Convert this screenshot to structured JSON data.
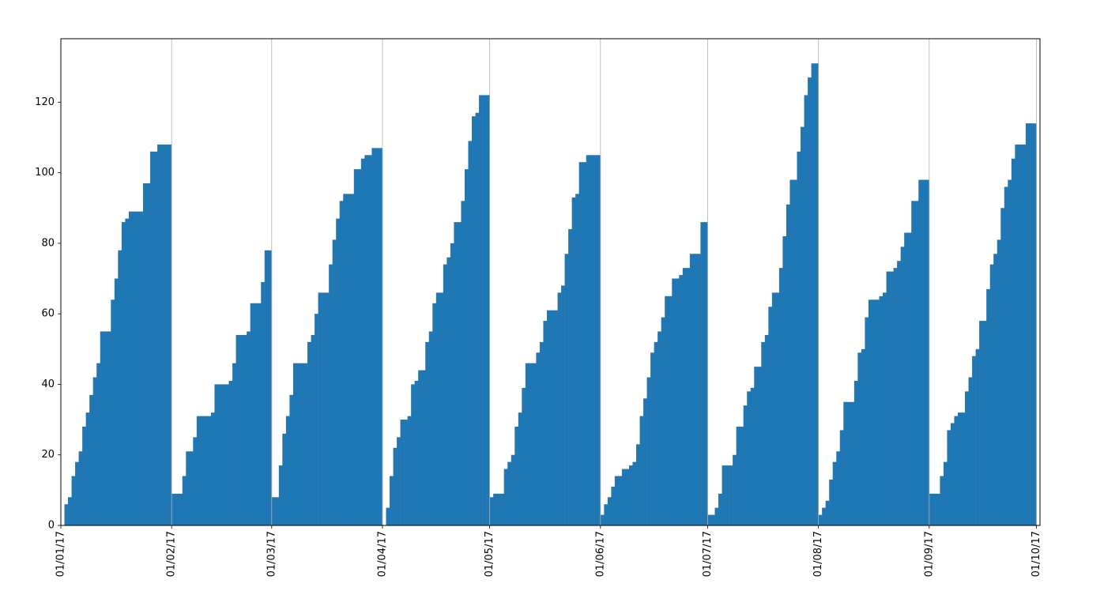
{
  "chart_data": {
    "type": "bar",
    "color": "#1f77b4",
    "grid": true,
    "x": [
      "2017-01-01",
      "2017-01-02",
      "2017-01-03",
      "2017-01-04",
      "2017-01-05",
      "2017-01-06",
      "2017-01-07",
      "2017-01-08",
      "2017-01-09",
      "2017-01-10",
      "2017-01-11",
      "2017-01-12",
      "2017-01-13",
      "2017-01-14",
      "2017-01-15",
      "2017-01-16",
      "2017-01-17",
      "2017-01-18",
      "2017-01-19",
      "2017-01-20",
      "2017-01-21",
      "2017-01-22",
      "2017-01-23",
      "2017-01-24",
      "2017-01-25",
      "2017-01-26",
      "2017-01-27",
      "2017-01-28",
      "2017-01-29",
      "2017-01-30",
      "2017-01-31",
      "2017-02-01",
      "2017-02-02",
      "2017-02-03",
      "2017-02-04",
      "2017-02-05",
      "2017-02-06",
      "2017-02-07",
      "2017-02-08",
      "2017-02-09",
      "2017-02-10",
      "2017-02-11",
      "2017-02-12",
      "2017-02-13",
      "2017-02-14",
      "2017-02-15",
      "2017-02-16",
      "2017-02-17",
      "2017-02-18",
      "2017-02-19",
      "2017-02-20",
      "2017-02-21",
      "2017-02-22",
      "2017-02-23",
      "2017-02-24",
      "2017-02-25",
      "2017-02-26",
      "2017-02-27",
      "2017-02-28",
      "2017-03-01",
      "2017-03-02",
      "2017-03-03",
      "2017-03-04",
      "2017-03-05",
      "2017-03-06",
      "2017-03-07",
      "2017-03-08",
      "2017-03-09",
      "2017-03-10",
      "2017-03-11",
      "2017-03-12",
      "2017-03-13",
      "2017-03-14",
      "2017-03-15",
      "2017-03-16",
      "2017-03-17",
      "2017-03-18",
      "2017-03-19",
      "2017-03-20",
      "2017-03-21",
      "2017-03-22",
      "2017-03-23",
      "2017-03-24",
      "2017-03-25",
      "2017-03-26",
      "2017-03-27",
      "2017-03-28",
      "2017-03-29",
      "2017-03-30",
      "2017-03-31",
      "2017-04-01",
      "2017-04-02",
      "2017-04-03",
      "2017-04-04",
      "2017-04-05",
      "2017-04-06",
      "2017-04-07",
      "2017-04-08",
      "2017-04-09",
      "2017-04-10",
      "2017-04-11",
      "2017-04-12",
      "2017-04-13",
      "2017-04-14",
      "2017-04-15",
      "2017-04-16",
      "2017-04-17",
      "2017-04-18",
      "2017-04-19",
      "2017-04-20",
      "2017-04-21",
      "2017-04-22",
      "2017-04-23",
      "2017-04-24",
      "2017-04-25",
      "2017-04-26",
      "2017-04-27",
      "2017-04-28",
      "2017-04-29",
      "2017-04-30",
      "2017-05-01",
      "2017-05-02",
      "2017-05-03",
      "2017-05-04",
      "2017-05-05",
      "2017-05-06",
      "2017-05-07",
      "2017-05-08",
      "2017-05-09",
      "2017-05-10",
      "2017-05-11",
      "2017-05-12",
      "2017-05-13",
      "2017-05-14",
      "2017-05-15",
      "2017-05-16",
      "2017-05-17",
      "2017-05-18",
      "2017-05-19",
      "2017-05-20",
      "2017-05-21",
      "2017-05-22",
      "2017-05-23",
      "2017-05-24",
      "2017-05-25",
      "2017-05-26",
      "2017-05-27",
      "2017-05-28",
      "2017-05-29",
      "2017-05-30",
      "2017-05-31",
      "2017-06-01",
      "2017-06-02",
      "2017-06-03",
      "2017-06-04",
      "2017-06-05",
      "2017-06-06",
      "2017-06-07",
      "2017-06-08",
      "2017-06-09",
      "2017-06-10",
      "2017-06-11",
      "2017-06-12",
      "2017-06-13",
      "2017-06-14",
      "2017-06-15",
      "2017-06-16",
      "2017-06-17",
      "2017-06-18",
      "2017-06-19",
      "2017-06-20",
      "2017-06-21",
      "2017-06-22",
      "2017-06-23",
      "2017-06-24",
      "2017-06-25",
      "2017-06-26",
      "2017-06-27",
      "2017-06-28",
      "2017-06-29",
      "2017-06-30",
      "2017-07-01",
      "2017-07-02",
      "2017-07-03",
      "2017-07-04",
      "2017-07-05",
      "2017-07-06",
      "2017-07-07",
      "2017-07-08",
      "2017-07-09",
      "2017-07-10",
      "2017-07-11",
      "2017-07-12",
      "2017-07-13",
      "2017-07-14",
      "2017-07-15",
      "2017-07-16",
      "2017-07-17",
      "2017-07-18",
      "2017-07-19",
      "2017-07-20",
      "2017-07-21",
      "2017-07-22",
      "2017-07-23",
      "2017-07-24",
      "2017-07-25",
      "2017-07-26",
      "2017-07-27",
      "2017-07-28",
      "2017-07-29",
      "2017-07-30",
      "2017-07-31",
      "2017-08-01",
      "2017-08-02",
      "2017-08-03",
      "2017-08-04",
      "2017-08-05",
      "2017-08-06",
      "2017-08-07",
      "2017-08-08",
      "2017-08-09",
      "2017-08-10",
      "2017-08-11",
      "2017-08-12",
      "2017-08-13",
      "2017-08-14",
      "2017-08-15",
      "2017-08-16",
      "2017-08-17",
      "2017-08-18",
      "2017-08-19",
      "2017-08-20",
      "2017-08-21",
      "2017-08-22",
      "2017-08-23",
      "2017-08-24",
      "2017-08-25",
      "2017-08-26",
      "2017-08-27",
      "2017-08-28",
      "2017-08-29",
      "2017-08-30",
      "2017-08-31",
      "2017-09-01",
      "2017-09-02",
      "2017-09-03",
      "2017-09-04",
      "2017-09-05",
      "2017-09-06",
      "2017-09-07",
      "2017-09-08",
      "2017-09-09",
      "2017-09-10",
      "2017-09-11",
      "2017-09-12",
      "2017-09-13",
      "2017-09-14",
      "2017-09-15",
      "2017-09-16",
      "2017-09-17",
      "2017-09-18",
      "2017-09-19",
      "2017-09-20",
      "2017-09-21",
      "2017-09-22",
      "2017-09-23",
      "2017-09-24",
      "2017-09-25",
      "2017-09-26",
      "2017-09-27",
      "2017-09-28",
      "2017-09-29",
      "2017-09-30"
    ],
    "values": [
      0,
      6,
      8,
      14,
      18,
      21,
      28,
      32,
      37,
      42,
      46,
      55,
      55,
      55,
      64,
      70,
      78,
      86,
      87,
      89,
      89,
      89,
      89,
      97,
      97,
      106,
      106,
      108,
      108,
      108,
      108,
      9,
      9,
      9,
      14,
      21,
      21,
      25,
      31,
      31,
      31,
      31,
      32,
      40,
      40,
      40,
      40,
      41,
      46,
      54,
      54,
      54,
      55,
      63,
      63,
      63,
      69,
      78,
      78,
      8,
      8,
      17,
      26,
      31,
      37,
      46,
      46,
      46,
      46,
      52,
      54,
      60,
      66,
      66,
      66,
      74,
      81,
      87,
      92,
      94,
      94,
      94,
      101,
      101,
      104,
      105,
      105,
      107,
      107,
      107,
      0,
      5,
      14,
      22,
      25,
      30,
      30,
      31,
      40,
      41,
      44,
      44,
      52,
      55,
      63,
      66,
      66,
      74,
      76,
      80,
      86,
      86,
      92,
      101,
      109,
      116,
      117,
      122,
      122,
      122,
      8,
      9,
      9,
      9,
      16,
      18,
      20,
      28,
      32,
      39,
      46,
      46,
      46,
      49,
      52,
      58,
      61,
      61,
      61,
      66,
      68,
      77,
      84,
      93,
      94,
      103,
      103,
      105,
      105,
      105,
      105,
      3,
      6,
      8,
      11,
      14,
      14,
      16,
      16,
      17,
      18,
      23,
      31,
      36,
      42,
      49,
      52,
      55,
      59,
      65,
      65,
      70,
      70,
      71,
      73,
      73,
      77,
      77,
      77,
      86,
      86,
      3,
      3,
      5,
      9,
      17,
      17,
      17,
      20,
      28,
      28,
      34,
      38,
      39,
      45,
      45,
      52,
      54,
      62,
      66,
      66,
      73,
      82,
      91,
      98,
      98,
      106,
      113,
      122,
      127,
      131,
      131,
      3,
      5,
      7,
      13,
      18,
      21,
      27,
      35,
      35,
      35,
      41,
      49,
      50,
      59,
      64,
      64,
      64,
      65,
      66,
      72,
      72,
      73,
      75,
      79,
      83,
      83,
      92,
      92,
      98,
      98,
      98,
      9,
      9,
      9,
      14,
      18,
      27,
      29,
      31,
      32,
      32,
      38,
      42,
      48,
      50,
      58,
      58,
      67,
      74,
      77,
      81,
      90,
      96,
      98,
      104,
      108,
      108,
      108,
      114,
      114,
      114
    ],
    "xlim": [
      "2017-01-01",
      "2017-10-02"
    ],
    "xticks": [
      {
        "value": "2017-01-01",
        "label": "01/01/17"
      },
      {
        "value": "2017-02-01",
        "label": "01/02/17"
      },
      {
        "value": "2017-03-01",
        "label": "01/03/17"
      },
      {
        "value": "2017-04-01",
        "label": "01/04/17"
      },
      {
        "value": "2017-05-01",
        "label": "01/05/17"
      },
      {
        "value": "2017-06-01",
        "label": "01/06/17"
      },
      {
        "value": "2017-07-01",
        "label": "01/07/17"
      },
      {
        "value": "2017-08-01",
        "label": "01/08/17"
      },
      {
        "value": "2017-09-01",
        "label": "01/09/17"
      },
      {
        "value": "2017-10-01",
        "label": "01/10/17"
      }
    ],
    "ylim": [
      0,
      138
    ],
    "yticks": [
      0,
      20,
      40,
      60,
      80,
      100,
      120
    ]
  }
}
